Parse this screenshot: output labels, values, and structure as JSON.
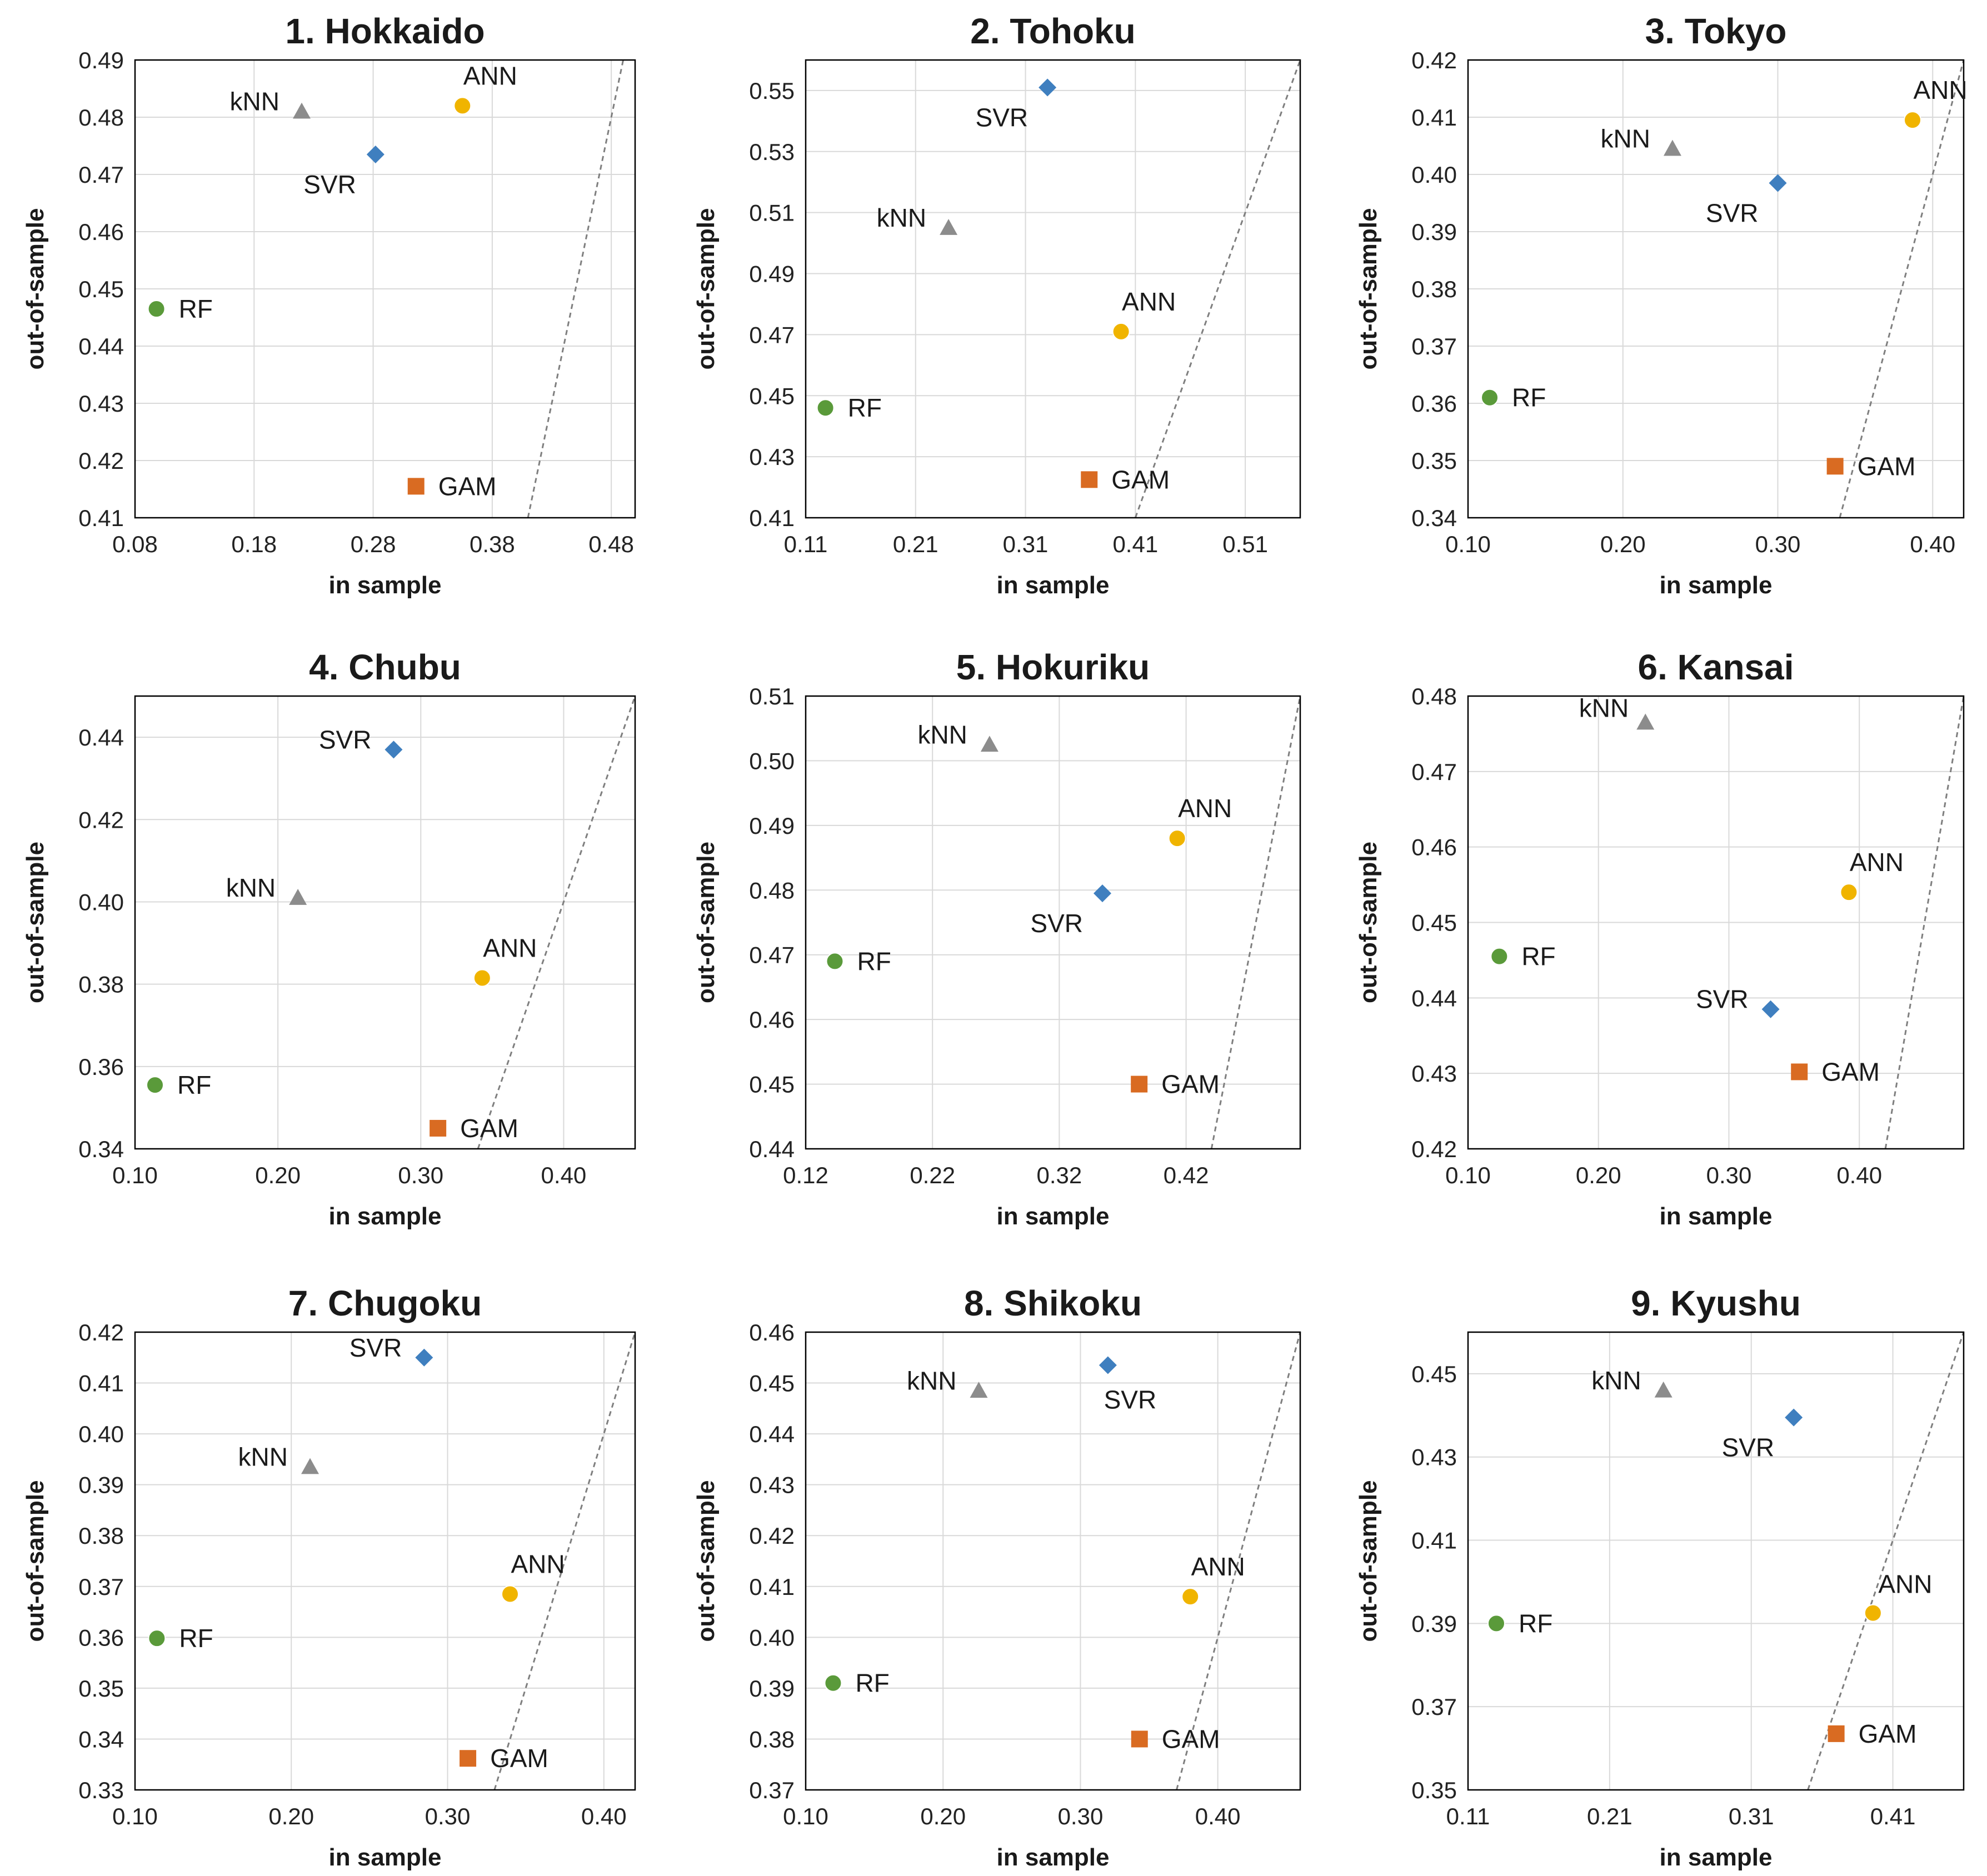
{
  "colors": {
    "ANN": "#f0b400",
    "SVR": "#3f7fbf",
    "kNN": "#8c8c8c",
    "RF": "#5a9a3a",
    "GAM": "#d96b22",
    "grid": "#d9d9d9",
    "frame": "#000000",
    "diagonal": "#7f7f7f"
  },
  "markers": {
    "ANN": "circle",
    "SVR": "diamond",
    "kNN": "triangle",
    "RF": "circle",
    "GAM": "square"
  },
  "chart_data": [
    {
      "type": "scatter",
      "title": "1. Hokkaido",
      "xlabel": "in sample",
      "ylabel": "out-of-sample",
      "xlim": [
        0.08,
        0.5
      ],
      "ylim": [
        0.41,
        0.49
      ],
      "xticks": [
        "0.08",
        "0.18",
        "0.28",
        "0.38",
        "0.48"
      ],
      "yticks": [
        "0.41",
        "0.42",
        "0.43",
        "0.44",
        "0.45",
        "0.46",
        "0.47",
        "0.48",
        "0.49"
      ],
      "diagonal": true,
      "points": [
        {
          "label": "kNN",
          "x": 0.22,
          "y": 0.481,
          "label_pos": "left"
        },
        {
          "label": "ANN",
          "x": 0.355,
          "y": 0.482,
          "label_pos": "above"
        },
        {
          "label": "SVR",
          "x": 0.282,
          "y": 0.4735,
          "label_pos": "below-left"
        },
        {
          "label": "RF",
          "x": 0.098,
          "y": 0.4465,
          "label_pos": "right"
        },
        {
          "label": "GAM",
          "x": 0.316,
          "y": 0.4155,
          "label_pos": "right"
        }
      ]
    },
    {
      "type": "scatter",
      "title": "2. Tohoku",
      "xlabel": "in sample",
      "ylabel": "out-of-sample",
      "xlim": [
        0.11,
        0.56
      ],
      "ylim": [
        0.41,
        0.56
      ],
      "xticks": [
        "0.11",
        "0.21",
        "0.31",
        "0.41",
        "0.51"
      ],
      "yticks": [
        "0.41",
        "0.43",
        "0.45",
        "0.47",
        "0.49",
        "0.51",
        "0.53",
        "0.55"
      ],
      "diagonal": true,
      "points": [
        {
          "label": "SVR",
          "x": 0.33,
          "y": 0.551,
          "label_pos": "below-left"
        },
        {
          "label": "kNN",
          "x": 0.24,
          "y": 0.505,
          "label_pos": "left"
        },
        {
          "label": "ANN",
          "x": 0.397,
          "y": 0.471,
          "label_pos": "above"
        },
        {
          "label": "RF",
          "x": 0.128,
          "y": 0.446,
          "label_pos": "right"
        },
        {
          "label": "GAM",
          "x": 0.368,
          "y": 0.4225,
          "label_pos": "right"
        }
      ]
    },
    {
      "type": "scatter",
      "title": "3. Tokyo",
      "xlabel": "in sample",
      "ylabel": "out-of-sample",
      "xlim": [
        0.1,
        0.42
      ],
      "ylim": [
        0.34,
        0.42
      ],
      "xticks": [
        "0.10",
        "0.20",
        "0.30",
        "0.40"
      ],
      "yticks": [
        "0.34",
        "0.35",
        "0.36",
        "0.37",
        "0.38",
        "0.39",
        "0.40",
        "0.41",
        "0.42"
      ],
      "diagonal": true,
      "points": [
        {
          "label": "ANN",
          "x": 0.387,
          "y": 0.4095,
          "label_pos": "above"
        },
        {
          "label": "kNN",
          "x": 0.232,
          "y": 0.4045,
          "label_pos": "left"
        },
        {
          "label": "SVR",
          "x": 0.3,
          "y": 0.3985,
          "label_pos": "below-left"
        },
        {
          "label": "RF",
          "x": 0.114,
          "y": 0.361,
          "label_pos": "right"
        },
        {
          "label": "GAM",
          "x": 0.337,
          "y": 0.349,
          "label_pos": "right"
        }
      ]
    },
    {
      "type": "scatter",
      "title": "4. Chubu",
      "xlabel": "in sample",
      "ylabel": "out-of-sample",
      "xlim": [
        0.1,
        0.45
      ],
      "ylim": [
        0.34,
        0.45
      ],
      "xticks": [
        "0.10",
        "0.20",
        "0.30",
        "0.40"
      ],
      "yticks": [
        "0.34",
        "0.36",
        "0.38",
        "0.40",
        "0.42",
        "0.44"
      ],
      "diagonal": true,
      "points": [
        {
          "label": "SVR",
          "x": 0.281,
          "y": 0.437,
          "label_pos": "left"
        },
        {
          "label": "kNN",
          "x": 0.214,
          "y": 0.401,
          "label_pos": "left"
        },
        {
          "label": "ANN",
          "x": 0.343,
          "y": 0.3815,
          "label_pos": "above"
        },
        {
          "label": "RF",
          "x": 0.114,
          "y": 0.3555,
          "label_pos": "right"
        },
        {
          "label": "GAM",
          "x": 0.312,
          "y": 0.345,
          "label_pos": "right"
        }
      ]
    },
    {
      "type": "scatter",
      "title": "5. Hokuriku",
      "xlabel": "in sample",
      "ylabel": "out-of-sample",
      "xlim": [
        0.12,
        0.51
      ],
      "ylim": [
        0.44,
        0.51
      ],
      "xticks": [
        "0.12",
        "0.22",
        "0.32",
        "0.42"
      ],
      "yticks": [
        "0.44",
        "0.45",
        "0.46",
        "0.47",
        "0.48",
        "0.49",
        "0.50",
        "0.51"
      ],
      "diagonal": true,
      "points": [
        {
          "label": "kNN",
          "x": 0.265,
          "y": 0.5025,
          "label_pos": "left"
        },
        {
          "label": "ANN",
          "x": 0.413,
          "y": 0.488,
          "label_pos": "above"
        },
        {
          "label": "SVR",
          "x": 0.354,
          "y": 0.4795,
          "label_pos": "below-left"
        },
        {
          "label": "RF",
          "x": 0.143,
          "y": 0.469,
          "label_pos": "right"
        },
        {
          "label": "GAM",
          "x": 0.383,
          "y": 0.45,
          "label_pos": "right"
        }
      ]
    },
    {
      "type": "scatter",
      "title": "6. Kansai",
      "xlabel": "in sample",
      "ylabel": "out-of-sample",
      "xlim": [
        0.1,
        0.48
      ],
      "ylim": [
        0.42,
        0.48
      ],
      "xticks": [
        "0.10",
        "0.20",
        "0.30",
        "0.40"
      ],
      "yticks": [
        "0.42",
        "0.43",
        "0.44",
        "0.45",
        "0.46",
        "0.47",
        "0.48"
      ],
      "diagonal": true,
      "points": [
        {
          "label": "kNN",
          "x": 0.236,
          "y": 0.4765,
          "label_pos": "above-left"
        },
        {
          "label": "ANN",
          "x": 0.392,
          "y": 0.454,
          "label_pos": "above"
        },
        {
          "label": "RF",
          "x": 0.124,
          "y": 0.4455,
          "label_pos": "right"
        },
        {
          "label": "SVR",
          "x": 0.332,
          "y": 0.4385,
          "label_pos": "left"
        },
        {
          "label": "GAM",
          "x": 0.354,
          "y": 0.4302,
          "label_pos": "right"
        }
      ]
    },
    {
      "type": "scatter",
      "title": "7. Chugoku",
      "xlabel": "in sample",
      "ylabel": "out-of-sample",
      "xlim": [
        0.1,
        0.42
      ],
      "ylim": [
        0.33,
        0.42
      ],
      "xticks": [
        "0.10",
        "0.20",
        "0.30",
        "0.40"
      ],
      "yticks": [
        "0.33",
        "0.34",
        "0.35",
        "0.36",
        "0.37",
        "0.38",
        "0.39",
        "0.40",
        "0.41",
        "0.42"
      ],
      "diagonal": true,
      "points": [
        {
          "label": "SVR",
          "x": 0.285,
          "y": 0.415,
          "label_pos": "left"
        },
        {
          "label": "kNN",
          "x": 0.212,
          "y": 0.3935,
          "label_pos": "left"
        },
        {
          "label": "ANN",
          "x": 0.34,
          "y": 0.3685,
          "label_pos": "above"
        },
        {
          "label": "RF",
          "x": 0.114,
          "y": 0.3598,
          "label_pos": "right"
        },
        {
          "label": "GAM",
          "x": 0.313,
          "y": 0.3362,
          "label_pos": "right"
        }
      ]
    },
    {
      "type": "scatter",
      "title": "8. Shikoku",
      "xlabel": "in sample",
      "ylabel": "out-of-sample",
      "xlim": [
        0.1,
        0.46
      ],
      "ylim": [
        0.37,
        0.46
      ],
      "xticks": [
        "0.10",
        "0.20",
        "0.30",
        "0.40"
      ],
      "yticks": [
        "0.37",
        "0.38",
        "0.39",
        "0.40",
        "0.41",
        "0.42",
        "0.43",
        "0.44",
        "0.45",
        "0.46"
      ],
      "diagonal": true,
      "points": [
        {
          "label": "kNN",
          "x": 0.226,
          "y": 0.4485,
          "label_pos": "left"
        },
        {
          "label": "SVR",
          "x": 0.32,
          "y": 0.4535,
          "label_pos": "below"
        },
        {
          "label": "ANN",
          "x": 0.38,
          "y": 0.408,
          "label_pos": "above"
        },
        {
          "label": "RF",
          "x": 0.12,
          "y": 0.391,
          "label_pos": "right"
        },
        {
          "label": "GAM",
          "x": 0.343,
          "y": 0.38,
          "label_pos": "right"
        }
      ]
    },
    {
      "type": "scatter",
      "title": "9. Kyushu",
      "xlabel": "in sample",
      "ylabel": "out-of-sample",
      "xlim": [
        0.11,
        0.46
      ],
      "ylim": [
        0.35,
        0.46
      ],
      "xticks": [
        "0.11",
        "0.21",
        "0.31",
        "0.41"
      ],
      "yticks": [
        "0.35",
        "0.37",
        "0.39",
        "0.41",
        "0.43",
        "0.45"
      ],
      "diagonal": true,
      "points": [
        {
          "label": "kNN",
          "x": 0.248,
          "y": 0.446,
          "label_pos": "left"
        },
        {
          "label": "SVR",
          "x": 0.34,
          "y": 0.4395,
          "label_pos": "below-left"
        },
        {
          "label": "ANN",
          "x": 0.396,
          "y": 0.3925,
          "label_pos": "above-right"
        },
        {
          "label": "RF",
          "x": 0.13,
          "y": 0.39,
          "label_pos": "right"
        },
        {
          "label": "GAM",
          "x": 0.37,
          "y": 0.3635,
          "label_pos": "right"
        }
      ]
    }
  ]
}
